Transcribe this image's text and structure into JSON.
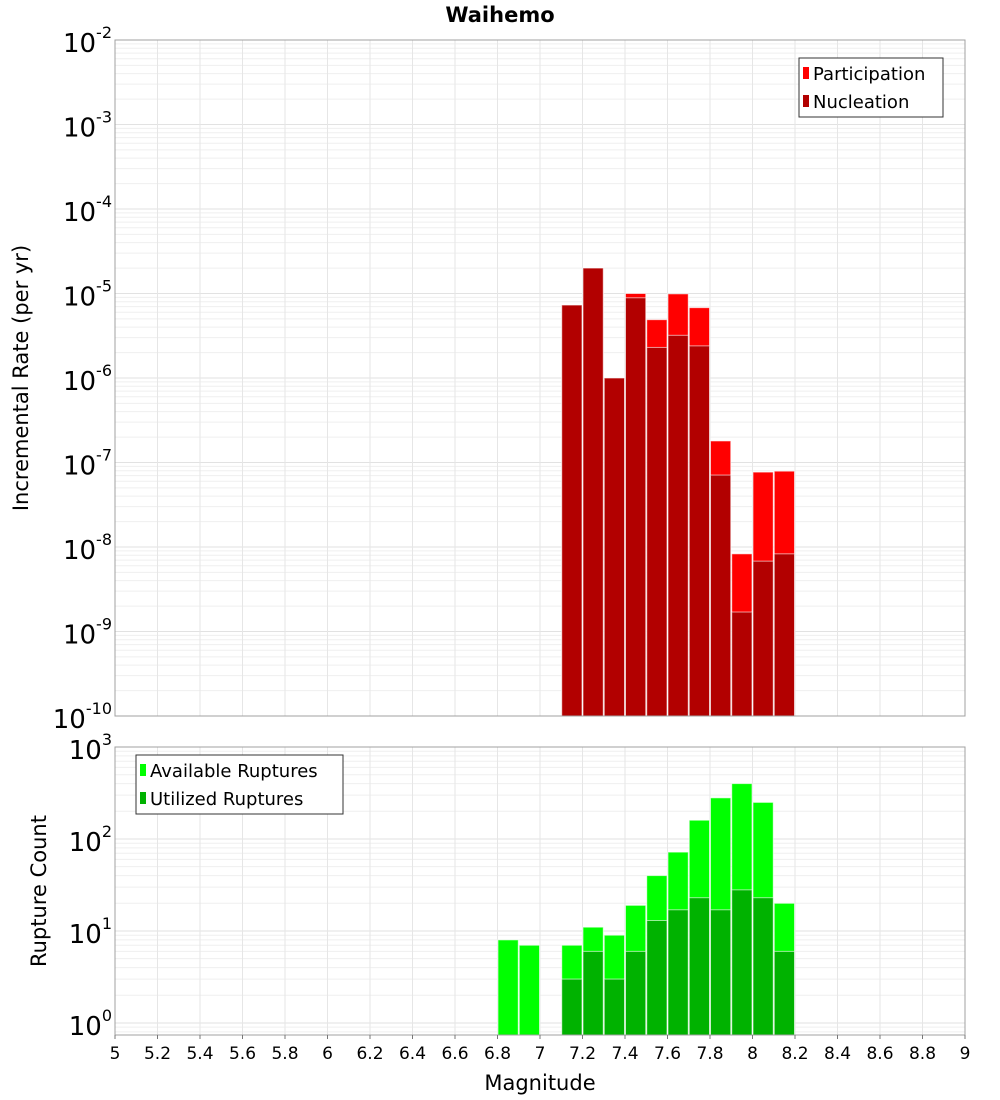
{
  "chart_data": [
    {
      "type": "bar",
      "title": "Waihemo",
      "xlabel": "Magnitude",
      "ylabel": "Incremental Rate (per yr)",
      "yscale": "log",
      "ylim": [
        1e-10,
        0.01
      ],
      "xlim": [
        5,
        9
      ],
      "grid": true,
      "legend_placement": "top-right",
      "x": [
        7.15,
        7.25,
        7.35,
        7.45,
        7.55,
        7.65,
        7.75,
        7.85,
        7.95,
        8.05,
        8.15
      ],
      "series": [
        {
          "name": "Participation",
          "color": "#ff0000",
          "values": [
            7.3e-06,
            2e-05,
            1e-06,
            1e-05,
            4.9e-06,
            9.9e-06,
            6.8e-06,
            1.8e-07,
            8.3e-09,
            7.7e-08,
            7.9e-08
          ]
        },
        {
          "name": "Nucleation",
          "color": "#b20000",
          "values": [
            7.3e-06,
            2e-05,
            1e-06,
            8.9e-06,
            2.3e-06,
            3.2e-06,
            2.4e-06,
            7.1e-08,
            1.7e-09,
            6.8e-09,
            8.3e-09
          ]
        }
      ],
      "yticks": [
        {
          "base": "10",
          "exp": "-10"
        },
        {
          "base": "10",
          "exp": "-9"
        },
        {
          "base": "10",
          "exp": "-8"
        },
        {
          "base": "10",
          "exp": "-7"
        },
        {
          "base": "10",
          "exp": "-6"
        },
        {
          "base": "10",
          "exp": "-5"
        },
        {
          "base": "10",
          "exp": "-4"
        },
        {
          "base": "10",
          "exp": "-3"
        },
        {
          "base": "10",
          "exp": "-2"
        }
      ]
    },
    {
      "type": "bar",
      "xlabel": "Magnitude",
      "ylabel": "Rupture Count",
      "yscale": "log",
      "ylim": [
        0.74,
        1000
      ],
      "xlim": [
        5,
        9
      ],
      "grid": true,
      "legend_placement": "top-left",
      "x": [
        6.85,
        6.95,
        7.15,
        7.25,
        7.35,
        7.45,
        7.55,
        7.65,
        7.75,
        7.85,
        7.95,
        8.05,
        8.15
      ],
      "series": [
        {
          "name": "Available Ruptures",
          "color": "#00ff00",
          "values": [
            8,
            7,
            7,
            11,
            9,
            19,
            40,
            72,
            160,
            280,
            400,
            250,
            20
          ]
        },
        {
          "name": "Utilized Ruptures",
          "color": "#00b200",
          "values": [
            0,
            0,
            3,
            6,
            3,
            6,
            13,
            17,
            23,
            17,
            28,
            23,
            6
          ]
        }
      ],
      "yticks": [
        {
          "base": "10",
          "exp": "0"
        },
        {
          "base": "10",
          "exp": "1"
        },
        {
          "base": "10",
          "exp": "2"
        },
        {
          "base": "10",
          "exp": "3"
        }
      ],
      "xticks": [
        "5",
        "5.2",
        "5.4",
        "5.6",
        "5.8",
        "6",
        "6.2",
        "6.4",
        "6.6",
        "6.8",
        "7",
        "7.2",
        "7.4",
        "7.6",
        "7.8",
        "8",
        "8.2",
        "8.4",
        "8.6",
        "8.8",
        "9"
      ]
    }
  ]
}
